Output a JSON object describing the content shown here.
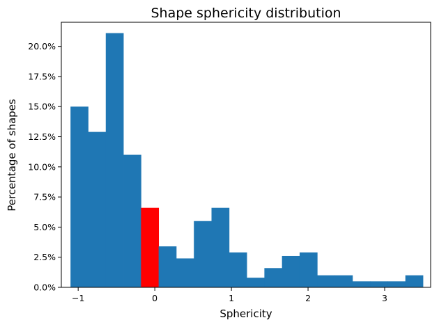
{
  "chart_data": {
    "type": "bar",
    "title": "Shape sphericity distribution",
    "xlabel": "Sphericity",
    "ylabel": "Percentage of shapes",
    "xlim": [
      -1.22,
      3.6
    ],
    "ylim": [
      0,
      0.22
    ],
    "x_ticks": [
      {
        "value": -1,
        "label": "−1"
      },
      {
        "value": 0,
        "label": "0"
      },
      {
        "value": 1,
        "label": "1"
      },
      {
        "value": 2,
        "label": "2"
      },
      {
        "value": 3,
        "label": "3"
      }
    ],
    "y_ticks": [
      {
        "value": 0.0,
        "label": "0.0%"
      },
      {
        "value": 0.025,
        "label": "2.5%"
      },
      {
        "value": 0.05,
        "label": "5.0%"
      },
      {
        "value": 0.075,
        "label": "7.5%"
      },
      {
        "value": 0.1,
        "label": "10.0%"
      },
      {
        "value": 0.125,
        "label": "12.5%"
      },
      {
        "value": 0.15,
        "label": "15.0%"
      },
      {
        "value": 0.175,
        "label": "17.5%"
      },
      {
        "value": 0.2,
        "label": "20.0%"
      }
    ],
    "bin_edges": [
      -1.1,
      -0.87,
      -0.64,
      -0.41,
      -0.18,
      0.05,
      0.28,
      0.51,
      0.74,
      0.97,
      1.2,
      1.43,
      1.66,
      1.89,
      2.12,
      2.35,
      2.58,
      2.81,
      3.04,
      3.27,
      3.5
    ],
    "values": [
      0.15,
      0.129,
      0.211,
      0.11,
      0.066,
      0.034,
      0.024,
      0.055,
      0.066,
      0.029,
      0.008,
      0.016,
      0.026,
      0.029,
      0.01,
      0.01,
      0.005,
      0.005,
      0.005,
      0.01
    ],
    "bar_color": "#1f77b4",
    "highlight_color": "#ff0000",
    "highlight_index": 4,
    "grid": false,
    "legend": "none"
  }
}
